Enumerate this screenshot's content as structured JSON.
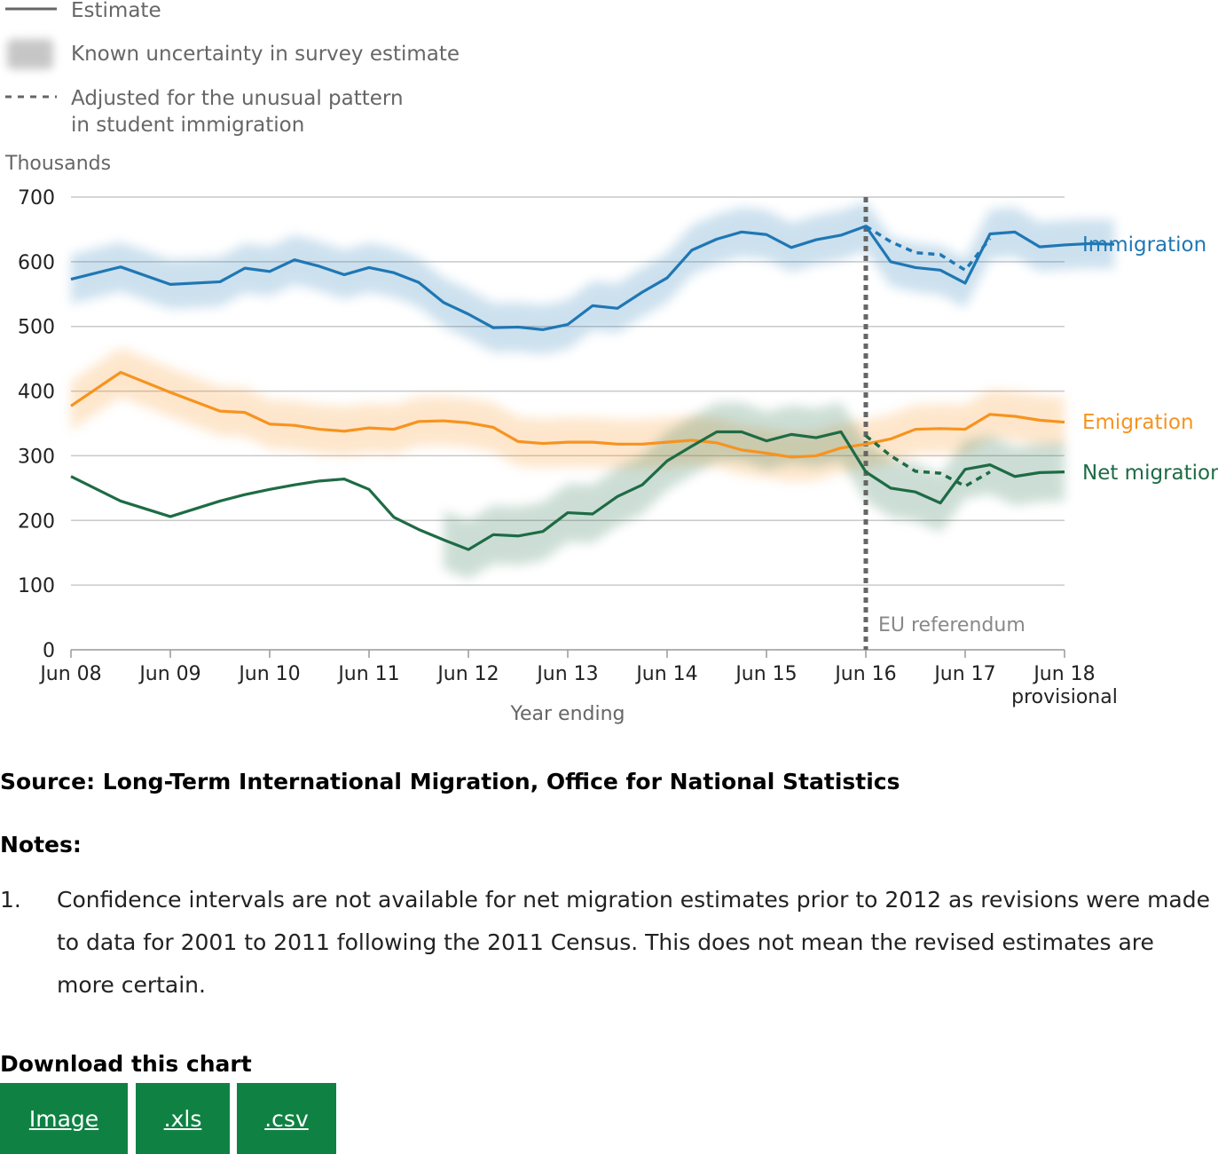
{
  "legend": {
    "estimate": "Estimate",
    "uncertainty": "Known uncertainty in survey estimate",
    "adjusted_line1": "Adjusted for the unusual pattern",
    "adjusted_line2": "in student immigration"
  },
  "colors": {
    "immigration": "#1f77b4",
    "emigration": "#f7931e",
    "net_migration": "#1e6b45",
    "grid": "#c9c9c9",
    "referendum": "#666666",
    "button": "#0f8243"
  },
  "chart_data": {
    "type": "line",
    "ylabel": "Thousands",
    "xlabel": "Year ending",
    "ylim": [
      0,
      700
    ],
    "yticks": [
      0,
      100,
      200,
      300,
      400,
      500,
      600,
      700
    ],
    "xlim": [
      2008.5,
      2018.5
    ],
    "xticks": [
      {
        "x": 2008.5,
        "label": "Jun 08"
      },
      {
        "x": 2009.5,
        "label": "Jun 09"
      },
      {
        "x": 2010.5,
        "label": "Jun 10"
      },
      {
        "x": 2011.5,
        "label": "Jun 11"
      },
      {
        "x": 2012.5,
        "label": "Jun 12"
      },
      {
        "x": 2013.5,
        "label": "Jun 13"
      },
      {
        "x": 2014.5,
        "label": "Jun 14"
      },
      {
        "x": 2015.5,
        "label": "Jun 15"
      },
      {
        "x": 2016.5,
        "label": "Jun 16"
      },
      {
        "x": 2017.5,
        "label": "Jun 17"
      },
      {
        "x": 2018.5,
        "label": "Jun 18",
        "sublabel": "provisional"
      }
    ],
    "grid": true,
    "annotation": {
      "x": 2016.5,
      "label": "EU referendum"
    },
    "series": [
      {
        "name": "Immigration",
        "color": "#1f77b4",
        "x": [
          2008.5,
          2009.0,
          2009.5,
          2010.0,
          2010.25,
          2010.5,
          2010.75,
          2011.0,
          2011.25,
          2011.5,
          2011.75,
          2012.0,
          2012.25,
          2012.5,
          2012.75,
          2013.0,
          2013.25,
          2013.5,
          2013.75,
          2014.0,
          2014.25,
          2014.5,
          2014.75,
          2015.0,
          2015.25,
          2015.5,
          2015.75,
          2016.0,
          2016.25,
          2016.5,
          2016.75,
          2017.0,
          2017.25,
          2017.5,
          2017.75,
          2018.0,
          2018.25,
          2018.5,
          2018.75,
          2019.0
        ],
        "y": [
          573,
          592,
          565,
          569,
          590,
          585,
          603,
          593,
          580,
          591,
          583,
          568,
          537,
          519,
          498,
          499,
          495,
          503,
          532,
          528,
          553,
          575,
          618,
          635,
          646,
          642,
          622,
          634,
          641,
          655,
          600,
          591,
          587,
          567,
          643,
          646,
          623,
          626,
          628,
          627
        ],
        "band": [
          38,
          38,
          38,
          38,
          38,
          38,
          38,
          38,
          38,
          38,
          38,
          38,
          38,
          38,
          38,
          38,
          38,
          38,
          38,
          38,
          38,
          38,
          38,
          38,
          38,
          38,
          38,
          38,
          38,
          38,
          38,
          38,
          38,
          38,
          38,
          38,
          38,
          38,
          38,
          38
        ]
      },
      {
        "name": "Emigration",
        "color": "#f7931e",
        "x": [
          2008.5,
          2009.0,
          2009.5,
          2010.0,
          2010.25,
          2010.5,
          2010.75,
          2011.0,
          2011.25,
          2011.5,
          2011.75,
          2012.0,
          2012.25,
          2012.5,
          2012.75,
          2013.0,
          2013.25,
          2013.5,
          2013.75,
          2014.0,
          2014.25,
          2014.5,
          2014.75,
          2015.0,
          2015.25,
          2015.5,
          2015.75,
          2016.0,
          2016.25,
          2016.5,
          2016.75,
          2017.0,
          2017.25,
          2017.5,
          2017.75,
          2018.0,
          2018.25,
          2018.5
        ],
        "y": [
          377,
          429,
          398,
          369,
          367,
          349,
          347,
          341,
          338,
          343,
          341,
          353,
          354,
          351,
          344,
          322,
          319,
          321,
          321,
          318,
          318,
          321,
          324,
          320,
          309,
          304,
          298,
          300,
          312,
          318,
          326,
          341,
          342,
          341,
          364,
          361,
          355,
          352
        ],
        "band": [
          38,
          38,
          38,
          38,
          38,
          38,
          38,
          38,
          38,
          38,
          38,
          38,
          38,
          38,
          38,
          38,
          38,
          38,
          38,
          38,
          38,
          38,
          38,
          38,
          38,
          38,
          38,
          38,
          38,
          38,
          38,
          38,
          38,
          38,
          38,
          38,
          38,
          38
        ]
      },
      {
        "name": "Net migration",
        "color": "#1e6b45",
        "x": [
          2008.5,
          2009.0,
          2009.5,
          2010.0,
          2010.25,
          2010.5,
          2010.75,
          2011.0,
          2011.25,
          2011.5,
          2011.75,
          2012.0,
          2012.25,
          2012.5,
          2012.75,
          2013.0,
          2013.25,
          2013.5,
          2013.75,
          2014.0,
          2014.25,
          2014.5,
          2014.75,
          2015.0,
          2015.25,
          2015.5,
          2015.75,
          2016.0,
          2016.25,
          2016.5,
          2016.75,
          2017.0,
          2017.25,
          2017.5,
          2017.75,
          2018.0,
          2018.25,
          2018.5
        ],
        "y": [
          268,
          230,
          206,
          230,
          240,
          248,
          255,
          261,
          264,
          248,
          205,
          186,
          170,
          155,
          178,
          176,
          183,
          212,
          210,
          237,
          255,
          292,
          315,
          337,
          337,
          323,
          333,
          328,
          337,
          275,
          250,
          244,
          227,
          279,
          286,
          268,
          274,
          275
        ],
        "band_start_index": 12,
        "band": [
          0,
          0,
          0,
          0,
          0,
          0,
          0,
          0,
          0,
          0,
          0,
          0,
          45,
          45,
          45,
          45,
          45,
          45,
          45,
          45,
          45,
          45,
          45,
          45,
          45,
          45,
          45,
          45,
          45,
          45,
          45,
          45,
          45,
          45,
          45,
          45,
          45,
          45
        ]
      }
    ],
    "adjusted_series": [
      {
        "name": "Immigration adjusted",
        "color": "#1f77b4",
        "x": [
          2016.5,
          2016.75,
          2017.0,
          2017.25,
          2017.5,
          2017.75
        ],
        "y": [
          655,
          631,
          614,
          611,
          587,
          636
        ]
      },
      {
        "name": "Net migration adjusted",
        "color": "#1e6b45",
        "x": [
          2016.5,
          2016.75,
          2017.0,
          2017.25,
          2017.5,
          2017.75
        ],
        "y": [
          331,
          300,
          276,
          273,
          253,
          275
        ]
      }
    ],
    "series_labels": [
      {
        "series": 0,
        "text": "Immigration"
      },
      {
        "series": 1,
        "text": "Emigration"
      },
      {
        "series": 2,
        "text": "Net migration"
      }
    ]
  },
  "source": "Source: Long-Term International Migration, Office for National Statistics",
  "notes": {
    "heading": "Notes:",
    "items": [
      {
        "num": "1.",
        "text": "Confidence intervals are not available for net migration estimates prior to 2012 as revisions were made to data for 2001 to 2011 following the 2011 Census. This does not mean the revised estimates are more certain."
      }
    ]
  },
  "download": {
    "heading": "Download this chart",
    "buttons": [
      {
        "label": "Image",
        "name": "download-image-button"
      },
      {
        "label": ".xls",
        "name": "download-xls-button"
      },
      {
        "label": ".csv",
        "name": "download-csv-button"
      }
    ]
  }
}
